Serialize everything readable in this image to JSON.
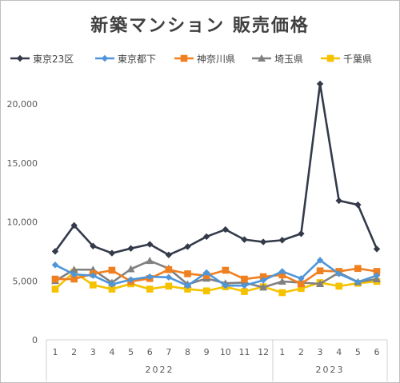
{
  "chart_data": {
    "type": "line",
    "title": "新築マンション 販売価格",
    "categories": [
      "1",
      "2",
      "3",
      "4",
      "5",
      "6",
      "7",
      "8",
      "9",
      "10",
      "11",
      "12",
      "1",
      "2",
      "3",
      "4",
      "5",
      "6"
    ],
    "year_groups": [
      {
        "label": "2022",
        "count": 12
      },
      {
        "label": "2023",
        "count": 6
      }
    ],
    "ylim": [
      0,
      22000
    ],
    "yticks": [
      0,
      5000,
      10000,
      15000,
      20000
    ],
    "ytick_labels": [
      "0",
      "5,000",
      "10,000",
      "15,000",
      "20,000"
    ],
    "grid": false,
    "legend_position": "top",
    "series": [
      {
        "name": "東京23区",
        "color": "#343a4a",
        "marker": "diamond",
        "values": [
          7500,
          9700,
          7950,
          7350,
          7750,
          8100,
          7200,
          7900,
          8750,
          9350,
          8500,
          8300,
          8450,
          9000,
          21700,
          11800,
          11450,
          7700
        ]
      },
      {
        "name": "東京都下",
        "color": "#4e95d9",
        "marker": "diamond",
        "values": [
          6350,
          5550,
          5450,
          4700,
          5100,
          5350,
          5300,
          4600,
          5700,
          4600,
          4600,
          5050,
          5800,
          5200,
          6750,
          5600,
          4900,
          5450
        ]
      },
      {
        "name": "神奈川県",
        "color": "#f07f1f",
        "marker": "square",
        "values": [
          5150,
          5150,
          5600,
          5900,
          4950,
          5200,
          5950,
          5600,
          5450,
          5900,
          5150,
          5350,
          5500,
          4750,
          5850,
          5800,
          6050,
          5800
        ]
      },
      {
        "name": "埼玉県",
        "color": "#808080",
        "marker": "triangle",
        "values": [
          5000,
          5950,
          5950,
          4850,
          6000,
          6700,
          6050,
          4700,
          5200,
          4800,
          4850,
          4450,
          4950,
          4850,
          4750,
          5700,
          4900,
          5150
        ]
      },
      {
        "name": "千葉県",
        "color": "#f5c200",
        "marker": "square",
        "values": [
          4300,
          5750,
          4650,
          4300,
          4750,
          4300,
          4550,
          4300,
          4150,
          4500,
          4100,
          4500,
          4000,
          4350,
          4850,
          4550,
          4800,
          4950
        ]
      }
    ]
  }
}
